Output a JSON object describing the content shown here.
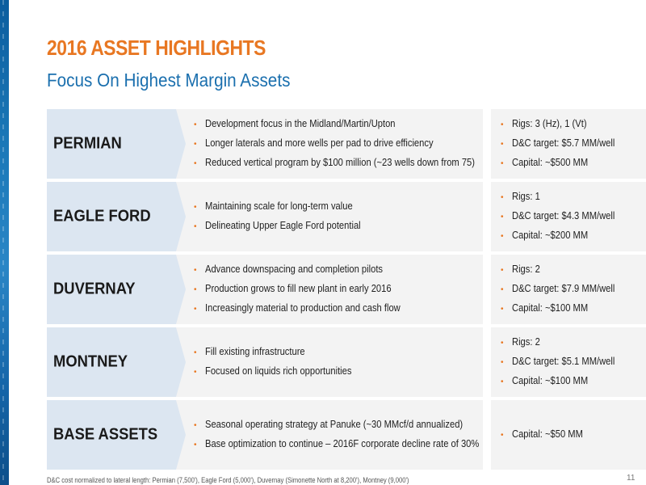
{
  "title": "2016 ASSET HIGHLIGHTS",
  "subtitle": "Focus On Highest Margin Assets",
  "assets": [
    {
      "name": "PERMIAN",
      "highlights": [
        "Development focus in the Midland/Martin/Upton",
        "Longer laterals and more wells per pad to drive efficiency",
        "Reduced vertical program by $100 million (~23 wells down from 75)"
      ],
      "stats": [
        "Rigs: 3 (Hz), 1 (Vt)",
        "D&C target: $5.7 MM/well",
        "Capital: ~$500 MM"
      ]
    },
    {
      "name": "EAGLE FORD",
      "highlights": [
        "Maintaining scale for long-term value",
        "Delineating Upper Eagle Ford potential"
      ],
      "stats": [
        "Rigs: 1",
        "D&C target: $4.3 MM/well",
        "Capital: ~$200 MM"
      ]
    },
    {
      "name": "DUVERNAY",
      "highlights": [
        "Advance downspacing and completion pilots",
        "Production grows to fill new plant in early 2016",
        "Increasingly material to production and cash flow"
      ],
      "stats": [
        "Rigs: 2",
        "D&C target: $7.9 MM/well",
        "Capital: ~$100 MM"
      ]
    },
    {
      "name": "MONTNEY",
      "highlights": [
        "Fill existing infrastructure",
        "Focused on liquids rich opportunities"
      ],
      "stats": [
        "Rigs: 2",
        "D&C target: $5.1 MM/well",
        "Capital: ~$100 MM"
      ]
    },
    {
      "name": "BASE ASSETS",
      "highlights": [
        "Seasonal operating strategy at Panuke (~30 MMcf/d annualized)",
        "Base optimization to continue – 2016F corporate decline rate of 30%"
      ],
      "stats": [
        "Capital: ~$50 MM"
      ]
    }
  ],
  "footnote": "D&C cost normalized to lateral length: Permian (7,500'), Eagle Ford (5,000'), Duvernay (Simonette North at 8,200'), Montney (9,000')",
  "page_number": "11",
  "colors": {
    "accent_orange": "#e87722",
    "title_blue": "#1a6fae",
    "label_bg": "#dce6f1",
    "panel_bg": "#f3f3f3"
  }
}
